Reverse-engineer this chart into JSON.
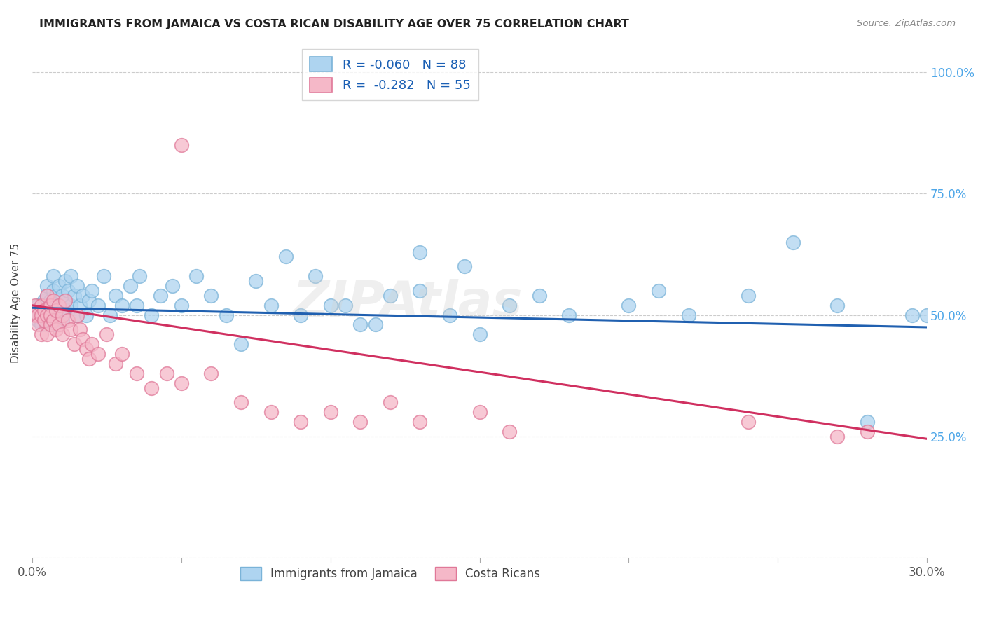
{
  "title": "IMMIGRANTS FROM JAMAICA VS COSTA RICAN DISABILITY AGE OVER 75 CORRELATION CHART",
  "source": "Source: ZipAtlas.com",
  "ylabel": "Disability Age Over 75",
  "xlim": [
    0.0,
    0.3
  ],
  "ylim": [
    0.0,
    1.05
  ],
  "xticks": [
    0.0,
    0.05,
    0.1,
    0.15,
    0.2,
    0.25,
    0.3
  ],
  "xtick_labels": [
    "0.0%",
    "",
    "",
    "",
    "",
    "",
    "30.0%"
  ],
  "ytick_positions": [
    0.0,
    0.25,
    0.5,
    0.75,
    1.0
  ],
  "ytick_labels": [
    "",
    "25.0%",
    "50.0%",
    "75.0%",
    "100.0%"
  ],
  "blue_R": -0.06,
  "blue_N": 88,
  "pink_R": -0.282,
  "pink_N": 55,
  "blue_color": "#aed4f0",
  "blue_edge": "#7ab3d8",
  "pink_color": "#f5b8c8",
  "pink_edge": "#e07898",
  "blue_line_color": "#2060b0",
  "pink_line_color": "#d03060",
  "right_label_color": "#4da6e8",
  "title_color": "#222222",
  "grid_color": "#cccccc",
  "watermark": "ZIPAtlas",
  "legend_label_blue": "Immigrants from Jamaica",
  "legend_label_pink": "Costa Ricans",
  "blue_x": [
    0.001,
    0.001,
    0.002,
    0.002,
    0.002,
    0.003,
    0.003,
    0.003,
    0.003,
    0.004,
    0.004,
    0.004,
    0.004,
    0.005,
    0.005,
    0.005,
    0.005,
    0.006,
    0.006,
    0.006,
    0.007,
    0.007,
    0.007,
    0.008,
    0.008,
    0.008,
    0.009,
    0.009,
    0.01,
    0.01,
    0.01,
    0.011,
    0.011,
    0.012,
    0.012,
    0.013,
    0.013,
    0.014,
    0.015,
    0.015,
    0.016,
    0.017,
    0.018,
    0.019,
    0.02,
    0.022,
    0.024,
    0.026,
    0.028,
    0.03,
    0.033,
    0.036,
    0.04,
    0.043,
    0.047,
    0.05,
    0.055,
    0.06,
    0.065,
    0.07,
    0.075,
    0.08,
    0.09,
    0.1,
    0.11,
    0.12,
    0.13,
    0.14,
    0.15,
    0.16,
    0.17,
    0.18,
    0.2,
    0.21,
    0.22,
    0.24,
    0.255,
    0.27,
    0.28,
    0.295,
    0.3,
    0.13,
    0.145,
    0.095,
    0.085,
    0.105,
    0.115,
    0.035
  ],
  "blue_y": [
    0.5,
    0.51,
    0.49,
    0.52,
    0.5,
    0.5,
    0.52,
    0.48,
    0.51,
    0.5,
    0.53,
    0.49,
    0.52,
    0.5,
    0.54,
    0.48,
    0.56,
    0.51,
    0.53,
    0.49,
    0.52,
    0.55,
    0.58,
    0.5,
    0.54,
    0.48,
    0.52,
    0.56,
    0.5,
    0.54,
    0.49,
    0.53,
    0.57,
    0.51,
    0.55,
    0.52,
    0.58,
    0.54,
    0.5,
    0.56,
    0.52,
    0.54,
    0.5,
    0.53,
    0.55,
    0.52,
    0.58,
    0.5,
    0.54,
    0.52,
    0.56,
    0.58,
    0.5,
    0.54,
    0.56,
    0.52,
    0.58,
    0.54,
    0.5,
    0.44,
    0.57,
    0.52,
    0.5,
    0.52,
    0.48,
    0.54,
    0.55,
    0.5,
    0.46,
    0.52,
    0.54,
    0.5,
    0.52,
    0.55,
    0.5,
    0.54,
    0.65,
    0.52,
    0.28,
    0.5,
    0.5,
    0.63,
    0.6,
    0.58,
    0.62,
    0.52,
    0.48,
    0.52
  ],
  "pink_x": [
    0.001,
    0.001,
    0.002,
    0.002,
    0.003,
    0.003,
    0.003,
    0.004,
    0.004,
    0.005,
    0.005,
    0.005,
    0.006,
    0.006,
    0.006,
    0.007,
    0.007,
    0.008,
    0.008,
    0.009,
    0.009,
    0.01,
    0.01,
    0.011,
    0.012,
    0.013,
    0.014,
    0.015,
    0.016,
    0.017,
    0.018,
    0.019,
    0.02,
    0.022,
    0.025,
    0.028,
    0.03,
    0.035,
    0.04,
    0.045,
    0.05,
    0.06,
    0.07,
    0.08,
    0.09,
    0.1,
    0.11,
    0.12,
    0.13,
    0.15,
    0.16,
    0.24,
    0.27,
    0.28,
    0.05
  ],
  "pink_y": [
    0.5,
    0.52,
    0.5,
    0.48,
    0.52,
    0.5,
    0.46,
    0.51,
    0.49,
    0.5,
    0.54,
    0.46,
    0.52,
    0.48,
    0.5,
    0.53,
    0.49,
    0.51,
    0.47,
    0.52,
    0.48,
    0.5,
    0.46,
    0.53,
    0.49,
    0.47,
    0.44,
    0.5,
    0.47,
    0.45,
    0.43,
    0.41,
    0.44,
    0.42,
    0.46,
    0.4,
    0.42,
    0.38,
    0.35,
    0.38,
    0.36,
    0.38,
    0.32,
    0.3,
    0.28,
    0.3,
    0.28,
    0.32,
    0.28,
    0.3,
    0.26,
    0.28,
    0.25,
    0.26,
    0.85
  ],
  "blue_line_x": [
    0.0,
    0.3
  ],
  "blue_line_y": [
    0.515,
    0.475
  ],
  "pink_line_x": [
    0.0,
    0.3
  ],
  "pink_line_y": [
    0.52,
    0.245
  ]
}
